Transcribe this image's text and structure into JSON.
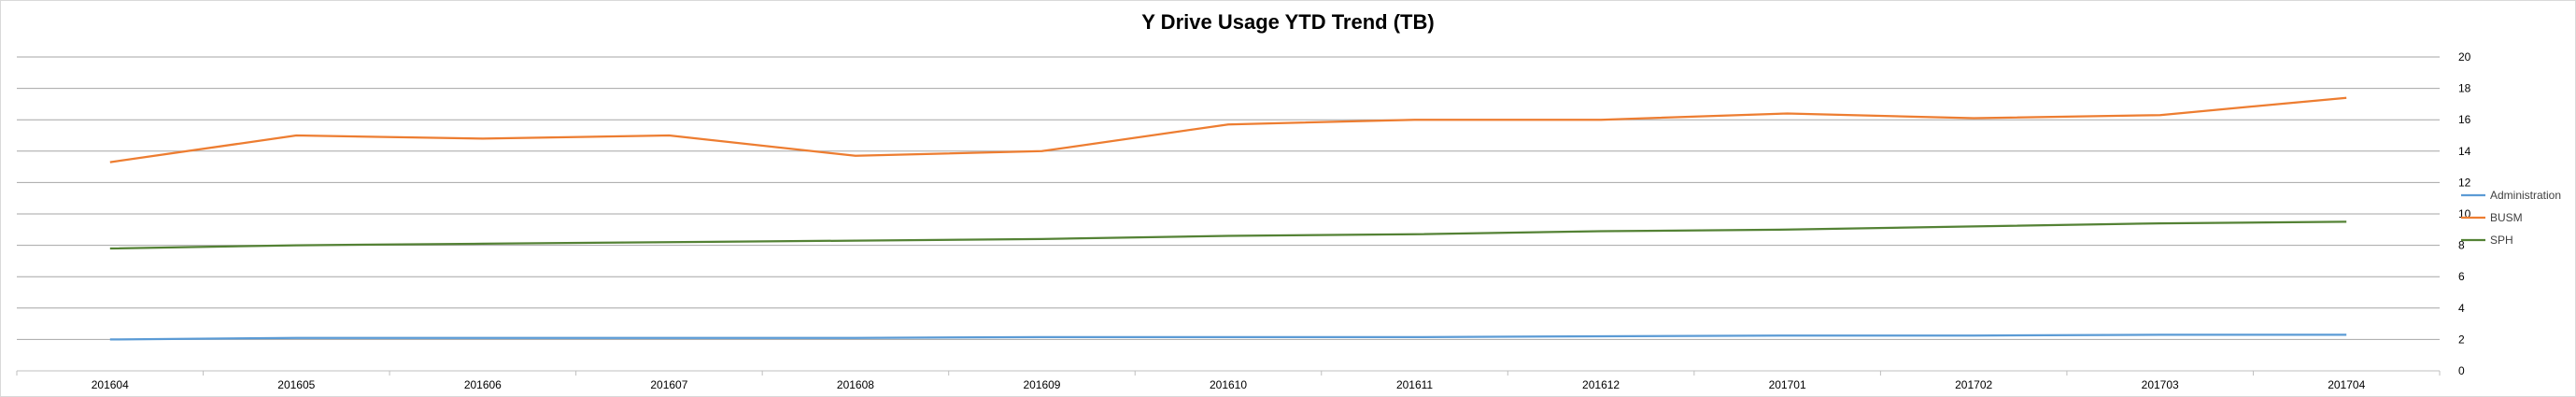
{
  "chart_data": {
    "type": "line",
    "title": "Y Drive Usage YTD Trend (TB)",
    "categories": [
      "201604",
      "201605",
      "201606",
      "201607",
      "201608",
      "201609",
      "201610",
      "201611",
      "201612",
      "201701",
      "201702",
      "201703",
      "201704"
    ],
    "ylim": [
      0,
      20
    ],
    "yticks": [
      0,
      2,
      4,
      6,
      8,
      10,
      12,
      14,
      16,
      18,
      20
    ],
    "grid": true,
    "legend_position": "right",
    "series": [
      {
        "name": "Administration",
        "color": "#5b9bd5",
        "values": [
          2.0,
          2.1,
          2.1,
          2.1,
          2.1,
          2.15,
          2.15,
          2.15,
          2.2,
          2.25,
          2.25,
          2.3,
          2.3
        ]
      },
      {
        "name": "BUSM",
        "color": "#ed7d31",
        "values": [
          13.3,
          15.0,
          14.8,
          15.0,
          13.7,
          14.0,
          15.7,
          16.0,
          16.0,
          16.4,
          16.1,
          16.3,
          17.4
        ]
      },
      {
        "name": "SPH",
        "color": "#548235",
        "values": [
          7.8,
          8.0,
          8.1,
          8.2,
          8.3,
          8.4,
          8.6,
          8.7,
          8.9,
          9.0,
          9.2,
          9.4,
          9.5
        ]
      }
    ]
  }
}
